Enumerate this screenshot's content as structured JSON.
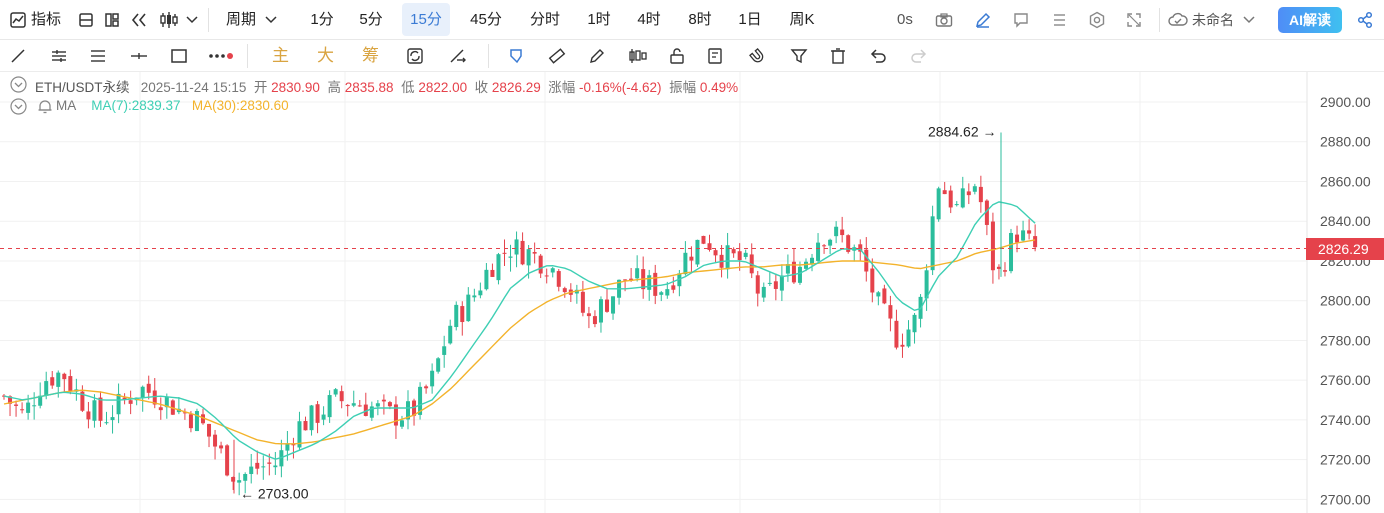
{
  "toolbar": {
    "indicator_label": "指标",
    "period_label": "周期",
    "periods": [
      "1分",
      "5分",
      "15分",
      "45分",
      "分时",
      "1时",
      "4时",
      "8时",
      "1日",
      "周K"
    ],
    "active_period": "15分",
    "countdown": "0s",
    "layout_name": "未命名",
    "ai_label": "AI解读"
  },
  "drawing_bar": {
    "tools_cn": [
      "主",
      "大",
      "筹"
    ],
    "icons": [
      "trend-line-icon",
      "parallel-lines-icon",
      "horizontal-lines-icon",
      "cross-line-icon",
      "rectangle-icon",
      "more-icon",
      "brush-icon",
      "measure-icon",
      "pencil-icon",
      "candle-icon",
      "lock-icon",
      "note-icon",
      "magnet-icon",
      "filter-icon",
      "trash-icon",
      "undo-icon",
      "redo-icon"
    ]
  },
  "legend": {
    "symbol": "ETH/USDT永续",
    "time": "2025-11-24 15:15",
    "open_label": "开",
    "open": "2830.90",
    "high_label": "高",
    "high": "2835.88",
    "low_label": "低",
    "low": "2822.00",
    "close_label": "收",
    "close": "2826.29",
    "change_label": "涨幅",
    "change": "-0.16%(-4.62)",
    "amp_label": "振幅",
    "amp": "0.49%",
    "ma_title": "MA",
    "ma7": "MA(7):2839.37",
    "ma30": "MA(30):2830.60"
  },
  "colors": {
    "up": "#2bbd9c",
    "down": "#e5424b",
    "ma7": "#3ecfb4",
    "ma30": "#f3b32c",
    "accent": "#3b7bd4"
  },
  "chart_data": {
    "type": "candlestick",
    "y_ticks": [
      "2700.00",
      "2720.00",
      "2740.00",
      "2760.00",
      "2780.00",
      "2800.00",
      "2820.00",
      "2840.00",
      "2860.00",
      "2880.00",
      "2900.00"
    ],
    "ylim": [
      2700,
      2900
    ],
    "last_price": "2826.29",
    "max_annotation": "2884.62",
    "min_annotation": "2703.00",
    "key_closes": [
      2752,
      2742,
      2760,
      2764,
      2750,
      2740,
      2748,
      2756,
      2752,
      2745,
      2740,
      2725,
      2710,
      2716,
      2718,
      2736,
      2742,
      2750,
      2749,
      2746,
      2742,
      2744,
      2760,
      2790,
      2800,
      2818,
      2827,
      2824,
      2818,
      2808,
      2790,
      2800,
      2812,
      2808,
      2806,
      2822,
      2832,
      2822,
      2820,
      2800,
      2812,
      2818,
      2834,
      2832,
      2822,
      2796,
      2780,
      2792,
      2860,
      2846,
      2860,
      2810,
      2835,
      2826
    ],
    "ma7": [
      2752,
      2750,
      2752,
      2754,
      2753,
      2750,
      2750,
      2751,
      2752,
      2751,
      2748,
      2740,
      2730,
      2724,
      2720,
      2724,
      2728,
      2734,
      2742,
      2746,
      2746,
      2746,
      2750,
      2762,
      2776,
      2790,
      2806,
      2814,
      2818,
      2816,
      2810,
      2806,
      2806,
      2807,
      2808,
      2812,
      2818,
      2820,
      2820,
      2816,
      2812,
      2814,
      2820,
      2826,
      2826,
      2814,
      2800,
      2794,
      2812,
      2822,
      2840,
      2850,
      2848,
      2839
    ],
    "ma30": [
      2748,
      2750,
      2752,
      2754,
      2755,
      2754,
      2752,
      2750,
      2748,
      2745,
      2742,
      2738,
      2734,
      2730,
      2728,
      2728,
      2729,
      2731,
      2733,
      2736,
      2739,
      2742,
      2748,
      2756,
      2766,
      2776,
      2786,
      2794,
      2800,
      2804,
      2806,
      2808,
      2810,
      2811,
      2812,
      2814,
      2815,
      2816,
      2817,
      2817,
      2818,
      2818,
      2819,
      2820,
      2820,
      2819,
      2818,
      2816,
      2818,
      2820,
      2824,
      2826,
      2829,
      2830.6
    ]
  }
}
